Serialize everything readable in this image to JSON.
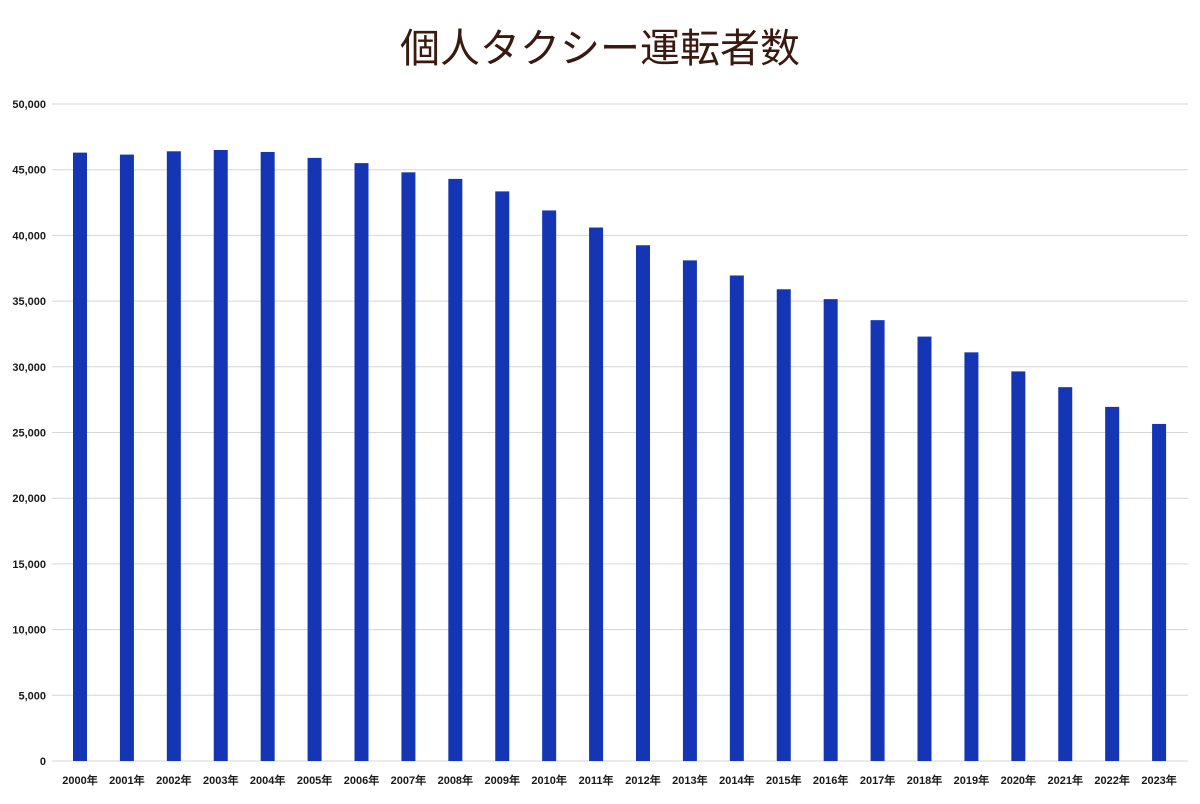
{
  "chart_data": {
    "type": "bar",
    "title": "個人タクシー運転者数",
    "xlabel": "",
    "ylabel": "",
    "ylim": [
      0,
      50000
    ],
    "yticks": [
      "0",
      "5,000",
      "10,000",
      "15,000",
      "20,000",
      "25,000",
      "30,000",
      "35,000",
      "40,000",
      "45,000",
      "50,000"
    ],
    "grid": true,
    "bar_color": "#1436b4",
    "categories": [
      "2000年",
      "2001年",
      "2002年",
      "2003年",
      "2004年",
      "2005年",
      "2006年",
      "2007年",
      "2008年",
      "2009年",
      "2010年",
      "2011年",
      "2012年",
      "2013年",
      "2014年",
      "2015年",
      "2016年",
      "2017年",
      "2018年",
      "2019年",
      "2020年",
      "2021年",
      "2022年",
      "2023年"
    ],
    "values": [
      46300,
      46150,
      46400,
      46500,
      46350,
      45900,
      45500,
      44800,
      44300,
      43350,
      41900,
      40600,
      39250,
      38100,
      36950,
      35900,
      35150,
      33550,
      32300,
      31100,
      29650,
      28450,
      26950,
      25650
    ]
  }
}
